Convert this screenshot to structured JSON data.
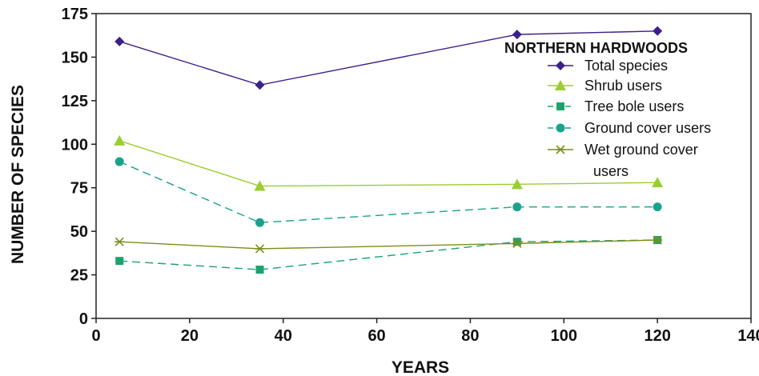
{
  "chart_data": {
    "type": "line",
    "title": "",
    "xlabel": "YEARS",
    "ylabel": "NUMBER OF SPECIES",
    "xlim": [
      0,
      140
    ],
    "ylim": [
      0,
      175
    ],
    "xticks": [
      0,
      20,
      40,
      60,
      80,
      100,
      120,
      140
    ],
    "yticks": [
      0,
      25,
      50,
      75,
      100,
      125,
      150,
      175
    ],
    "grid": false,
    "legend_title": "NORTHERN HARDWOODS",
    "legend_position": "top-right",
    "x": [
      5,
      35,
      90,
      120
    ],
    "series": [
      {
        "name": "Total species",
        "values": [
          159,
          134,
          163,
          165
        ],
        "color": "#3d1f8c",
        "marker": "diamond",
        "dash": "solid"
      },
      {
        "name": "Shrub users",
        "values": [
          102,
          76,
          77,
          78
        ],
        "color": "#9acd32",
        "marker": "triangle",
        "dash": "solid"
      },
      {
        "name": "Tree bole users",
        "values": [
          33,
          28,
          44,
          45
        ],
        "color": "#1aa36f",
        "marker": "square",
        "dash": "dashed"
      },
      {
        "name": "Ground cover users",
        "values": [
          90,
          55,
          64,
          64
        ],
        "color": "#1aa38c",
        "marker": "circle",
        "dash": "dashed"
      },
      {
        "name": "Wet ground cover users",
        "values": [
          44,
          40,
          43,
          45
        ],
        "color": "#7a8f1a",
        "marker": "asterisk",
        "dash": "solid"
      }
    ]
  }
}
